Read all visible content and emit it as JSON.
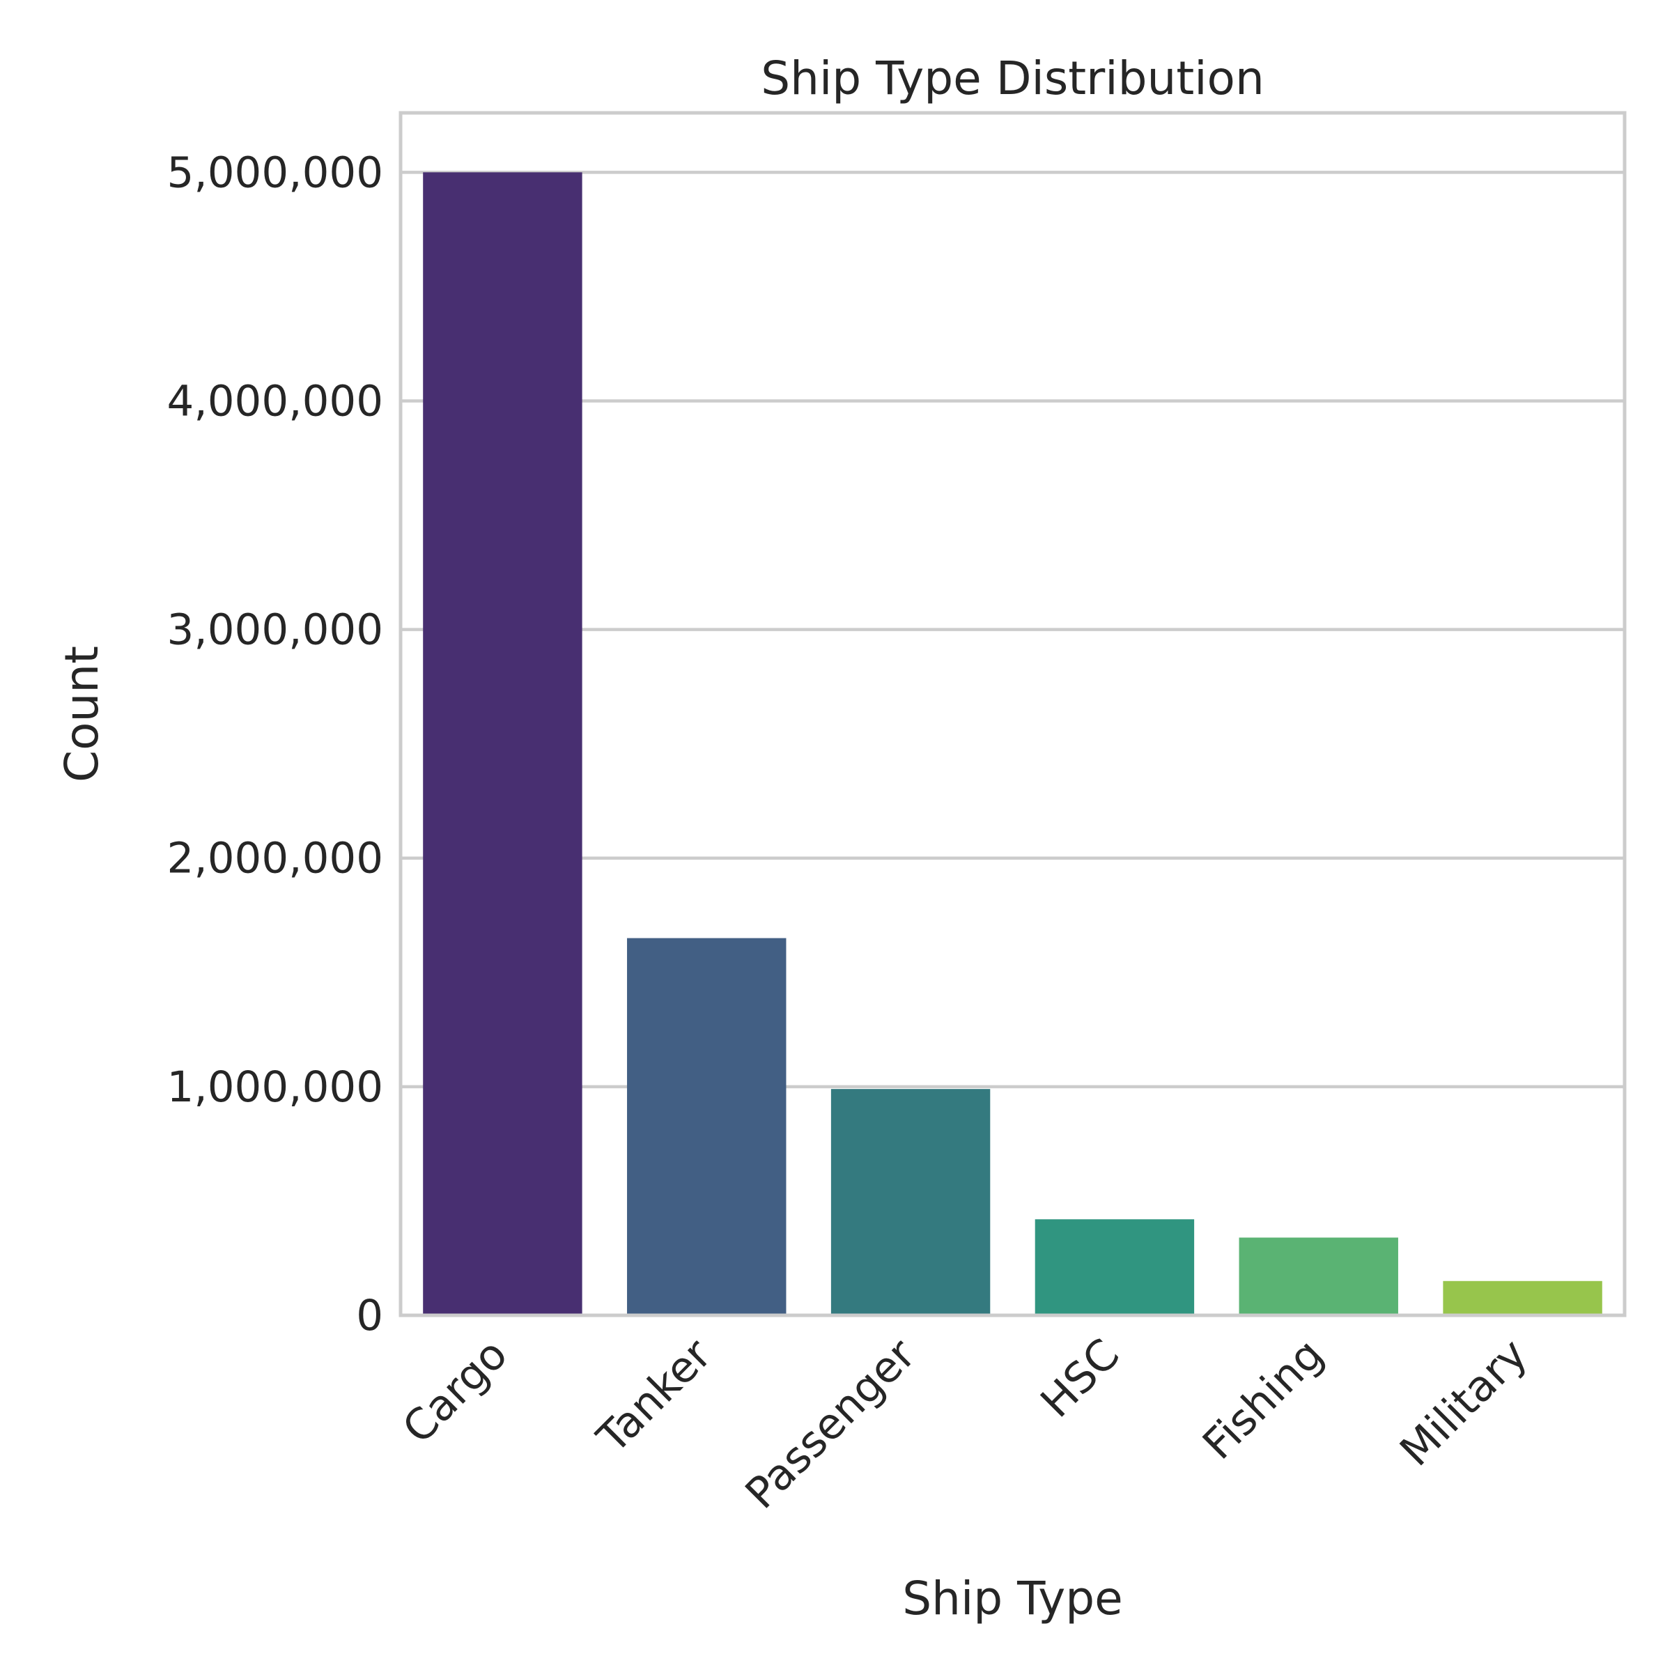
{
  "chart_data": {
    "type": "bar",
    "title": "Ship Type Distribution",
    "xlabel": "Ship Type",
    "ylabel": "Count",
    "categories": [
      "Cargo",
      "Tanker",
      "Passenger",
      "HSC",
      "Fishing",
      "Military"
    ],
    "values": [
      5000000,
      1650000,
      990000,
      420000,
      340000,
      150000
    ],
    "colors": [
      "#482f71",
      "#425f84",
      "#347a7f",
      "#309580",
      "#5ab373",
      "#97c54c"
    ],
    "ylim": [
      0,
      5260000
    ],
    "yticks": [
      0,
      1000000,
      2000000,
      3000000,
      4000000,
      5000000
    ],
    "ytick_labels": [
      "0",
      "1,000,000",
      "2,000,000",
      "3,000,000",
      "4,000,000",
      "5,000,000"
    ],
    "grid": true,
    "gridColor": "#cccccc",
    "frameColor": "#cccccc",
    "legend": "none"
  }
}
